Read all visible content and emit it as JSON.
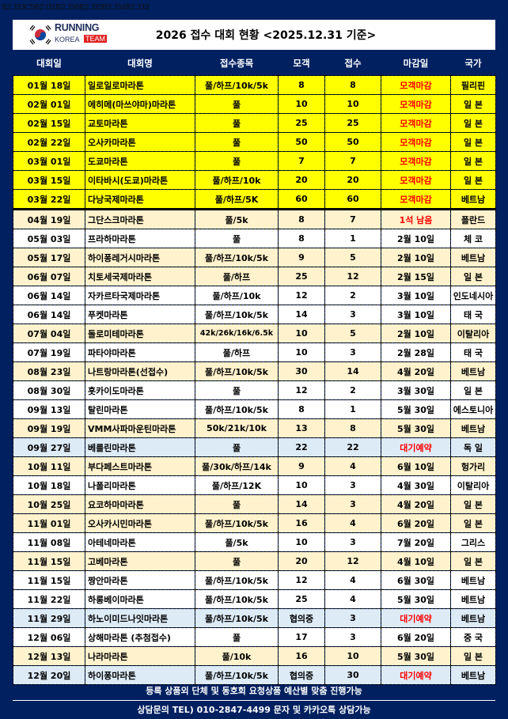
{
  "cell_reference": "B2:J33C5B2:I31B2:J36B2:J35B2:J34B2:J33",
  "logo": {
    "line1": "RUNNING",
    "line2a": "KOREA",
    "line2b": "TEAM"
  },
  "title": "2026 접수 대회 현황 <2025.12.31 기준>",
  "colors": {
    "background": "#002060",
    "closed_row": "#ffff00",
    "cream_row": "#fff2cc",
    "waitlist_row": "#ddebf7",
    "alert_text": "#ff0000"
  },
  "columns": [
    "대회일",
    "대회명",
    "접수종목",
    "모객",
    "접수",
    "마감일",
    "국가"
  ],
  "rows": [
    {
      "date": "01월 18일",
      "name": "일로일로마라톤",
      "events": "풀/하프/10k/5k",
      "quota": "8",
      "registered": "8",
      "deadline": "모객마감",
      "country": "필리핀",
      "style": "yellow",
      "alert": true
    },
    {
      "date": "02월 01일",
      "name": "에히메(마쓰야마)마라톤",
      "events": "풀",
      "quota": "10",
      "registered": "10",
      "deadline": "모객마감",
      "country": "일 본",
      "style": "yellow",
      "alert": true
    },
    {
      "date": "02월 15일",
      "name": "교토마라톤",
      "events": "풀",
      "quota": "25",
      "registered": "25",
      "deadline": "모객마감",
      "country": "일 본",
      "style": "yellow",
      "alert": true
    },
    {
      "date": "02월 22일",
      "name": "오사카마라톤",
      "events": "풀",
      "quota": "50",
      "registered": "50",
      "deadline": "모객마감",
      "country": "일 본",
      "style": "yellow",
      "alert": true
    },
    {
      "date": "03월 01일",
      "name": "도쿄마라톤",
      "events": "풀",
      "quota": "7",
      "registered": "7",
      "deadline": "모객마감",
      "country": "일 본",
      "style": "yellow",
      "alert": true
    },
    {
      "date": "03월 15일",
      "name": "이타바시(도쿄)마라톤",
      "events": "풀/하프/10k",
      "quota": "20",
      "registered": "20",
      "deadline": "모객마감",
      "country": "일 본",
      "style": "yellow",
      "alert": true
    },
    {
      "date": "03월 22일",
      "name": "다낭국제마라톤",
      "events": "풀/하프/5K",
      "quota": "60",
      "registered": "60",
      "deadline": "모객마감",
      "country": "베트남",
      "style": "yellow",
      "alert": true
    },
    {
      "date": "04월 19일",
      "name": "그단스크마라톤",
      "events": "풀/5k",
      "quota": "8",
      "registered": "7",
      "deadline": "1석 남음",
      "country": "폴란드",
      "style": "cream",
      "alert": true,
      "separator": true
    },
    {
      "date": "05월 03일",
      "name": "프라하마라톤",
      "events": "풀",
      "quota": "8",
      "registered": "1",
      "deadline": "2월 10일",
      "country": "체 코",
      "style": "white"
    },
    {
      "date": "05월 17일",
      "name": "하이퐁레거시마라톤",
      "events": "풀/하프/10k/5k",
      "quota": "9",
      "registered": "5",
      "deadline": "2월 10일",
      "country": "베트남",
      "style": "cream"
    },
    {
      "date": "06월 07일",
      "name": "치토세국제마라톤",
      "events": "풀/하프",
      "quota": "25",
      "registered": "12",
      "deadline": "2월 15일",
      "country": "일 본",
      "style": "cream"
    },
    {
      "date": "06월 14일",
      "name": "자카르타국제마라톤",
      "events": "풀/하프/10k",
      "quota": "12",
      "registered": "2",
      "deadline": "3월 10일",
      "country": "인도네시아",
      "style": "white"
    },
    {
      "date": "06월 14일",
      "name": "푸켓마라톤",
      "events": "풀/하프/10k/5k",
      "quota": "14",
      "registered": "3",
      "deadline": "3월 10일",
      "country": "태 국",
      "style": "white"
    },
    {
      "date": "07월 04일",
      "name": "돌로미테마라톤",
      "events": "42k/26k/16k/6.5k",
      "quota": "10",
      "registered": "5",
      "deadline": "2월 10일",
      "country": "이탈리아",
      "style": "cream",
      "small_events": true
    },
    {
      "date": "07월 19일",
      "name": "파타야마라톤",
      "events": "풀/하프",
      "quota": "10",
      "registered": "3",
      "deadline": "2월 28일",
      "country": "태 국",
      "style": "white"
    },
    {
      "date": "08월 23일",
      "name": "나트랑마라톤(선접수)",
      "events": "풀/하프/10k/5k",
      "quota": "30",
      "registered": "14",
      "deadline": "4월 20일",
      "country": "베트남",
      "style": "cream"
    },
    {
      "date": "08월 30일",
      "name": "홋카이도마라톤",
      "events": "풀",
      "quota": "12",
      "registered": "2",
      "deadline": "3월 30일",
      "country": "일 본",
      "style": "white"
    },
    {
      "date": "09월 13일",
      "name": "탈린마라톤",
      "events": "풀/하프/10k/5k",
      "quota": "8",
      "registered": "1",
      "deadline": "5월 30일",
      "country": "에스토니아",
      "style": "white"
    },
    {
      "date": "09월 19일",
      "name": "VMM사파마운틴마라톤",
      "events": "50k/21k/10k",
      "quota": "13",
      "registered": "8",
      "deadline": "5월 30일",
      "country": "베트남",
      "style": "cream"
    },
    {
      "date": "09월 27일",
      "name": "베를린마라톤",
      "events": "풀",
      "quota": "22",
      "registered": "22",
      "deadline": "대기예약",
      "country": "독 일",
      "style": "blue",
      "alert": true
    },
    {
      "date": "10월 11일",
      "name": "부다페스트마라톤",
      "events": "풀/30k/하프/14k",
      "quota": "9",
      "registered": "4",
      "deadline": "6월 10일",
      "country": "헝가리",
      "style": "cream"
    },
    {
      "date": "10월 18일",
      "name": "나폴리마라톤",
      "events": "풀/하프/12K",
      "quota": "10",
      "registered": "3",
      "deadline": "4월 30일",
      "country": "이탈리아",
      "style": "white"
    },
    {
      "date": "10월 25일",
      "name": "요코하마마라톤",
      "events": "풀",
      "quota": "14",
      "registered": "3",
      "deadline": "4월 20일",
      "country": "일 본",
      "style": "cream"
    },
    {
      "date": "11월 01일",
      "name": "오사카시민마라톤",
      "events": "풀/하프/10k/5k",
      "quota": "16",
      "registered": "4",
      "deadline": "6월 20일",
      "country": "일 본",
      "style": "cream"
    },
    {
      "date": "11월 08일",
      "name": "아테네마라톤",
      "events": "풀/5k",
      "quota": "10",
      "registered": "3",
      "deadline": "7월 20일",
      "country": "그리스",
      "style": "white"
    },
    {
      "date": "11월 15일",
      "name": "고베마라톤",
      "events": "풀",
      "quota": "20",
      "registered": "12",
      "deadline": "4월 10일",
      "country": "일 본",
      "style": "cream"
    },
    {
      "date": "11월 15일",
      "name": "짱안마라톤",
      "events": "풀/하프/10k/5k",
      "quota": "12",
      "registered": "4",
      "deadline": "6월 30일",
      "country": "베트남",
      "style": "white"
    },
    {
      "date": "11월 22일",
      "name": "하롱베이마라톤",
      "events": "풀/하프/10k/5k",
      "quota": "25",
      "registered": "4",
      "deadline": "5월 30일",
      "country": "베트남",
      "style": "white"
    },
    {
      "date": "11월 29일",
      "name": "하노이미드나잇마라톤",
      "events": "풀/하프/10k/5k",
      "quota": "협의중",
      "registered": "3",
      "deadline": "대기예약",
      "country": "베트남",
      "style": "blue",
      "alert": true
    },
    {
      "date": "12월 06일",
      "name": "상해마라톤 (추첨접수)",
      "events": "풀",
      "quota": "17",
      "registered": "3",
      "deadline": "6월 20일",
      "country": "중 국",
      "style": "white"
    },
    {
      "date": "12월 13일",
      "name": "나라마라톤",
      "events": "풀/10k",
      "quota": "16",
      "registered": "10",
      "deadline": "5월 30일",
      "country": "일 본",
      "style": "cream"
    },
    {
      "date": "12월 20일",
      "name": "하이퐁마라톤",
      "events": "풀/하프/10k/5k",
      "quota": "협의중",
      "registered": "30",
      "deadline": "대기예약",
      "country": "베트남",
      "style": "blue",
      "alert": true
    }
  ],
  "footer": {
    "note": "등록 상품외 단체 및 동호회 요청상품 예산별 맞춤 진행가능",
    "contact": "상담문의 TEL) 010-2847-4499 문자 및 카카오톡 상담가능"
  }
}
